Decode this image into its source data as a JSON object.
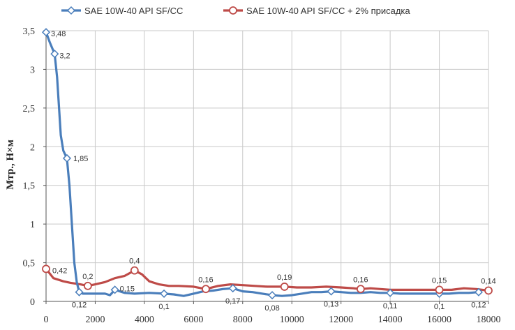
{
  "chart_data": {
    "type": "line",
    "title": "",
    "xlabel": "",
    "ylabel": "Мтр., Н×м",
    "xlim": [
      0,
      18000
    ],
    "ylim": [
      0,
      3.5
    ],
    "x_ticks": [
      0,
      2000,
      4000,
      6000,
      8000,
      10000,
      12000,
      14000,
      16000,
      18000
    ],
    "y_ticks": [
      {
        "value": 0,
        "label": "0"
      },
      {
        "value": 0.5,
        "label": "0,5"
      },
      {
        "value": 1,
        "label": "1"
      },
      {
        "value": 1.5,
        "label": "1,5"
      },
      {
        "value": 2,
        "label": "2"
      },
      {
        "value": 2.5,
        "label": "2,5"
      },
      {
        "value": 3,
        "label": "3"
      },
      {
        "value": 3.5,
        "label": "3,5"
      }
    ],
    "grid": true,
    "legend_position": "top",
    "series": [
      {
        "name": "SAE 10W-40 API SF/CC",
        "color": "#4a7ebb",
        "marker": "diamond",
        "points": [
          [
            0,
            3.48
          ],
          [
            150,
            3.35
          ],
          [
            350,
            3.2
          ],
          [
            450,
            2.9
          ],
          [
            600,
            2.15
          ],
          [
            700,
            1.95
          ],
          [
            850,
            1.85
          ],
          [
            950,
            1.5
          ],
          [
            1050,
            1.0
          ],
          [
            1150,
            0.5
          ],
          [
            1250,
            0.25
          ],
          [
            1350,
            0.12
          ],
          [
            1500,
            0.1
          ],
          [
            2000,
            0.1
          ],
          [
            2400,
            0.1
          ],
          [
            2600,
            0.08
          ],
          [
            2800,
            0.15
          ],
          [
            3200,
            0.11
          ],
          [
            3600,
            0.1
          ],
          [
            4200,
            0.11
          ],
          [
            4800,
            0.1
          ],
          [
            5200,
            0.09
          ],
          [
            5600,
            0.07
          ],
          [
            6000,
            0.1
          ],
          [
            6400,
            0.13
          ],
          [
            6800,
            0.14
          ],
          [
            7200,
            0.16
          ],
          [
            7600,
            0.17
          ],
          [
            8000,
            0.13
          ],
          [
            8400,
            0.12
          ],
          [
            8800,
            0.1
          ],
          [
            9200,
            0.08
          ],
          [
            9600,
            0.07
          ],
          [
            10000,
            0.08
          ],
          [
            10400,
            0.1
          ],
          [
            10800,
            0.12
          ],
          [
            11200,
            0.12
          ],
          [
            11600,
            0.13
          ],
          [
            12000,
            0.12
          ],
          [
            12400,
            0.11
          ],
          [
            12800,
            0.11
          ],
          [
            13200,
            0.12
          ],
          [
            13600,
            0.11
          ],
          [
            14000,
            0.11
          ],
          [
            14400,
            0.1
          ],
          [
            14800,
            0.1
          ],
          [
            15200,
            0.1
          ],
          [
            15600,
            0.1
          ],
          [
            16000,
            0.1
          ],
          [
            16400,
            0.1
          ],
          [
            16800,
            0.11
          ],
          [
            17200,
            0.11
          ],
          [
            17600,
            0.12
          ]
        ],
        "markers": [
          {
            "x": 0,
            "y": 3.48,
            "label": "3,48"
          },
          {
            "x": 350,
            "y": 3.2,
            "label": "3,2"
          },
          {
            "x": 850,
            "y": 1.85,
            "label": "1,85"
          },
          {
            "x": 1350,
            "y": 0.12,
            "label": "0,12"
          },
          {
            "x": 2800,
            "y": 0.15,
            "label": "0,15"
          },
          {
            "x": 4800,
            "y": 0.1,
            "label": "0,1"
          },
          {
            "x": 7600,
            "y": 0.17,
            "label": "0,17"
          },
          {
            "x": 9200,
            "y": 0.08,
            "label": "0,08"
          },
          {
            "x": 11600,
            "y": 0.13,
            "label": "0,13"
          },
          {
            "x": 14000,
            "y": 0.11,
            "label": "0,11"
          },
          {
            "x": 16000,
            "y": 0.1,
            "label": "0,1"
          },
          {
            "x": 17600,
            "y": 0.12,
            "label": "0,12"
          }
        ]
      },
      {
        "name": "SAE 10W-40 API SF/CC + 2% присадка",
        "color": "#be4b48",
        "marker": "circle",
        "points": [
          [
            0,
            0.42
          ],
          [
            300,
            0.3
          ],
          [
            700,
            0.26
          ],
          [
            1000,
            0.24
          ],
          [
            1400,
            0.22
          ],
          [
            1700,
            0.2
          ],
          [
            2000,
            0.22
          ],
          [
            2400,
            0.25
          ],
          [
            2800,
            0.3
          ],
          [
            3200,
            0.33
          ],
          [
            3600,
            0.4
          ],
          [
            3900,
            0.35
          ],
          [
            4200,
            0.26
          ],
          [
            4600,
            0.22
          ],
          [
            5000,
            0.2
          ],
          [
            5400,
            0.2
          ],
          [
            6000,
            0.19
          ],
          [
            6500,
            0.16
          ],
          [
            7000,
            0.2
          ],
          [
            7500,
            0.22
          ],
          [
            8000,
            0.21
          ],
          [
            8500,
            0.2
          ],
          [
            9000,
            0.19
          ],
          [
            9700,
            0.19
          ],
          [
            10200,
            0.18
          ],
          [
            10800,
            0.18
          ],
          [
            11400,
            0.19
          ],
          [
            12000,
            0.18
          ],
          [
            12500,
            0.17
          ],
          [
            12800,
            0.16
          ],
          [
            13200,
            0.17
          ],
          [
            13600,
            0.16
          ],
          [
            14000,
            0.15
          ],
          [
            14500,
            0.15
          ],
          [
            15000,
            0.15
          ],
          [
            15500,
            0.15
          ],
          [
            16000,
            0.15
          ],
          [
            16500,
            0.15
          ],
          [
            17000,
            0.17
          ],
          [
            17500,
            0.16
          ],
          [
            18000,
            0.14
          ]
        ],
        "markers": [
          {
            "x": 0,
            "y": 0.42,
            "label": "0,42"
          },
          {
            "x": 1700,
            "y": 0.2,
            "label": "0,2"
          },
          {
            "x": 3600,
            "y": 0.4,
            "label": "0,4"
          },
          {
            "x": 6500,
            "y": 0.16,
            "label": "0,16"
          },
          {
            "x": 9700,
            "y": 0.19,
            "label": "0,19"
          },
          {
            "x": 12800,
            "y": 0.16,
            "label": "0,16"
          },
          {
            "x": 16000,
            "y": 0.15,
            "label": "0,15"
          },
          {
            "x": 18000,
            "y": 0.14,
            "label": "0,14"
          }
        ]
      }
    ]
  }
}
